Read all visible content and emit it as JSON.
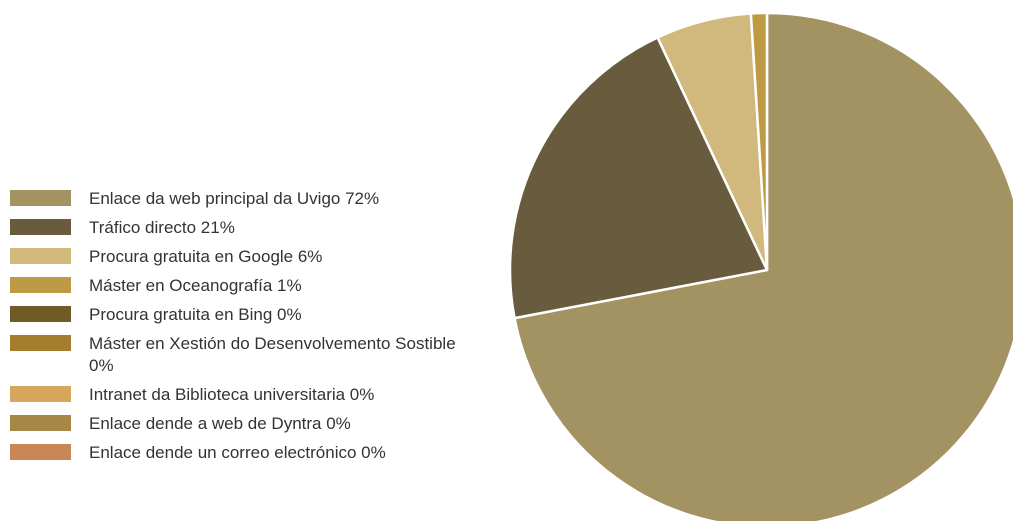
{
  "chart_data": {
    "type": "pie",
    "start": "top",
    "direction": "clockwise",
    "legend_position": "left",
    "slices": [
      {
        "label": "Enlace da web principal da Uvigo 72%",
        "value": 72,
        "color": "#a39262"
      },
      {
        "label": "Tráfico directo 21%",
        "value": 21,
        "color": "#695b3d"
      },
      {
        "label": "Procura gratuita en Google 6%",
        "value": 6,
        "color": "#d1b87c"
      },
      {
        "label": "Máster en Oceanografía 1%",
        "value": 1,
        "color": "#bf9a44"
      },
      {
        "label": "Procura gratuita en Bing 0%",
        "value": 0,
        "color": "#6f5a28"
      },
      {
        "label": "Máster en Xestión do Desenvolvemento Sostible 0%",
        "value": 0,
        "color": "#a67c2e"
      },
      {
        "label": "Intranet da Biblioteca universitaria 0%",
        "value": 0,
        "color": "#d5a75b"
      },
      {
        "label": "Enlace dende a web de Dyntra 0%",
        "value": 0,
        "color": "#a68745"
      },
      {
        "label": "Enlace dende un correo electrónico 0%",
        "value": 0,
        "color": "#c98757"
      }
    ]
  }
}
